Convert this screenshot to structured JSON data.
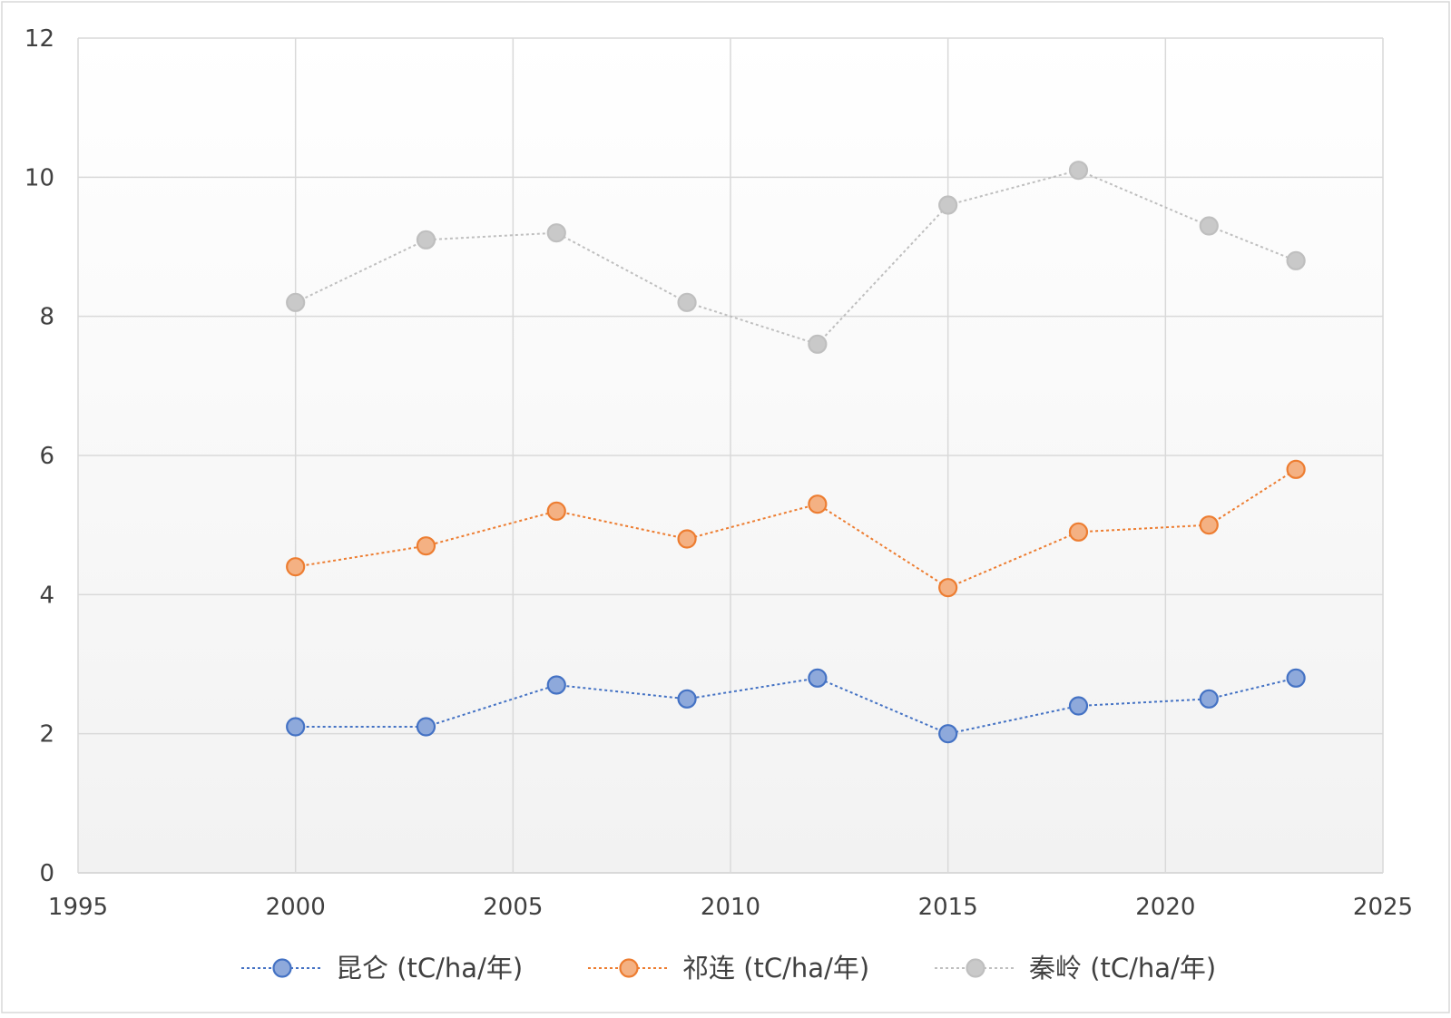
{
  "chart_data": {
    "type": "line",
    "title": "",
    "xlabel": "",
    "ylabel": "",
    "xlim": [
      1995,
      2025
    ],
    "ylim": [
      0,
      12
    ],
    "x_ticks": [
      1995,
      2000,
      2005,
      2010,
      2015,
      2020,
      2025
    ],
    "y_ticks": [
      0,
      2,
      4,
      6,
      8,
      10,
      12
    ],
    "grid": true,
    "legend_position": "bottom",
    "x": [
      2000,
      2003,
      2006,
      2009,
      2012,
      2015,
      2018,
      2021,
      2023
    ],
    "series": [
      {
        "name": "昆仑 (tC/ha/年)",
        "color": "#4472C4",
        "fill": "#8EA9DB",
        "values": [
          2.1,
          2.1,
          2.7,
          2.5,
          2.8,
          2.0,
          2.4,
          2.5,
          2.8
        ]
      },
      {
        "name": "祁连 (tC/ha/年)",
        "color": "#ED7D31",
        "fill": "#F4B183",
        "values": [
          4.4,
          4.7,
          5.2,
          4.8,
          5.3,
          4.1,
          4.9,
          5.0,
          5.8
        ]
      },
      {
        "name": "秦岭 (tC/ha/年)",
        "color": "#BFBFBF",
        "fill": "#C9C9C9",
        "values": [
          8.2,
          9.1,
          9.2,
          8.2,
          7.6,
          9.6,
          10.1,
          9.3,
          8.8
        ]
      }
    ]
  }
}
